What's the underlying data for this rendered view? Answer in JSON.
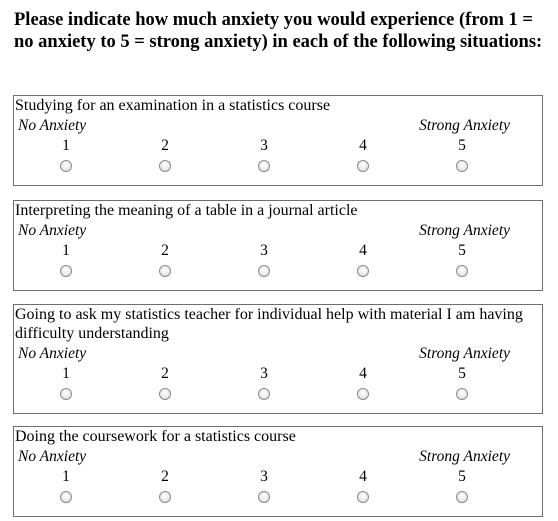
{
  "instructions": "Please indicate how much anxiety you would experience (from 1 = no anxiety to 5 = strong anxiety) in each of the following situations:",
  "scale": {
    "low_label": "No Anxiety",
    "high_label": "Strong Anxiety",
    "options": [
      "1",
      "2",
      "3",
      "4",
      "5"
    ]
  },
  "questions": [
    {
      "text": "Studying for an examination in a statistics course",
      "selected": null
    },
    {
      "text": "Interpreting the meaning of a table in a journal article",
      "selected": null
    },
    {
      "text": "Going to ask my statistics teacher for individual help with material I am having difficulty understanding",
      "selected": null
    },
    {
      "text": "Doing the coursework for a statistics course",
      "selected": null
    }
  ]
}
